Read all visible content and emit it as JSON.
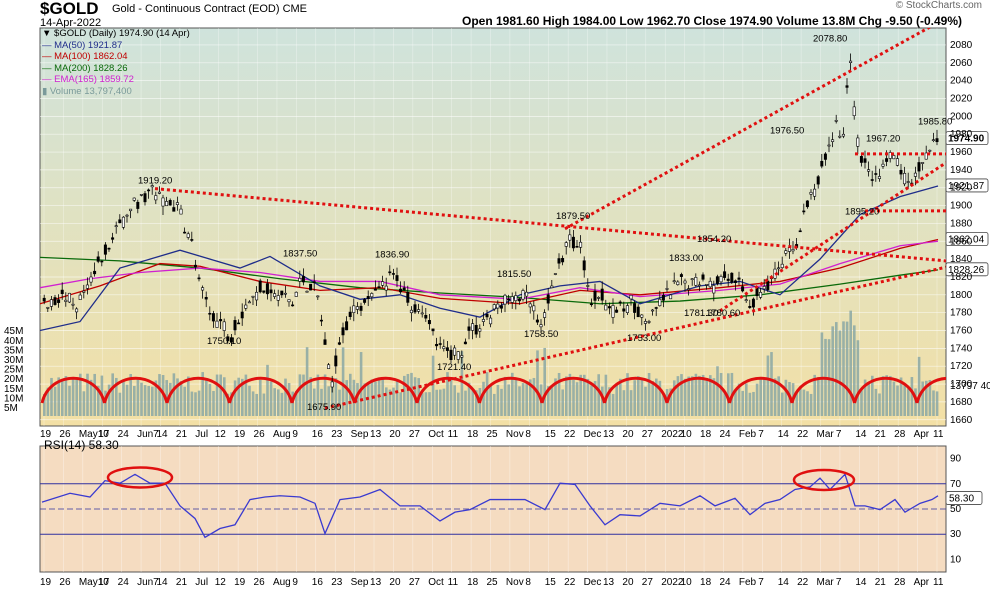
{
  "header": {
    "title": "$GOLD",
    "subtitle": "Gold - Continuous Contract (EOD) CME",
    "date": "14-Apr-2022",
    "ohlc": "Open 1981.60  High 1984.00  Low 1962.70  Close 1974.90  Volume 13.8M  Chg -9.50 (-0.49%)",
    "brand": "© StockCharts.com"
  },
  "legend": [
    {
      "text": "▼ $GOLD (Daily) 1974.90 (14 Apr)",
      "color": "#000000"
    },
    {
      "text": "— MA(50) 1921.87",
      "color": "#1f2d8a"
    },
    {
      "text": "— MA(100) 1862.04",
      "color": "#c00000"
    },
    {
      "text": "— MA(200) 1828.26",
      "color": "#0a6a0a"
    },
    {
      "text": "— EMA(165) 1859.72",
      "color": "#d020d0"
    },
    {
      "text": "▮ Volume 13,797,400",
      "color": "#7a9a9a"
    }
  ],
  "rsi_label": "RSI(14) 58.30",
  "colors": {
    "price_bg_top": "#cfe3dc",
    "price_bg_bottom": "#f2e1a8",
    "rsi_bg": "#f4dcc0",
    "trend": "#e01010",
    "ma50": "#1f2d8a",
    "ma100": "#c00000",
    "ma200": "#0a6a0a",
    "ema165": "#d020d0",
    "volume": "#8aa7a5",
    "rsi": "#3a3ad0"
  },
  "chart_data": {
    "type": "line",
    "price_axis": {
      "ylim": [
        1653,
        2099
      ],
      "ticks": [
        1660,
        1680,
        1700,
        1720,
        1740,
        1760,
        1780,
        1800,
        1820,
        1840,
        1860,
        1880,
        1900,
        1920,
        1940,
        1960,
        1980,
        2000,
        2020,
        2040,
        2060,
        2080
      ]
    },
    "volume_axis": {
      "labels": [
        "5M",
        "10M",
        "15M",
        "20M",
        "25M",
        "30M",
        "35M",
        "40M",
        "45M"
      ]
    },
    "x_tick_labels": [
      "19",
      "26",
      "May10",
      "17",
      "24",
      "Jun7",
      "14",
      "21",
      "Jul",
      "12",
      "19",
      "26",
      "Aug",
      "9",
      "16",
      "23",
      "Sep",
      "13",
      "20",
      "27",
      "Oct",
      "11",
      "18",
      "25",
      "Nov",
      "8",
      "15",
      "22",
      "Dec",
      "13",
      "20",
      "27",
      "2022",
      "10",
      "18",
      "24",
      "Feb",
      "7",
      "14",
      "22",
      "Mar",
      "7",
      "14",
      "21",
      "28",
      "Apr",
      "11"
    ],
    "current_price": "1974.90",
    "price_tags": [
      "1921.87",
      "1862.04",
      "1828.26"
    ],
    "volume_tag": "13797 40",
    "annotations": [
      "1919.20",
      "1837.50",
      "1836.90",
      "1750.10",
      "1815.50",
      "1879.50",
      "1758.50",
      "1721.40",
      "1675.90",
      "1833.00",
      "1854.20",
      "1781.30",
      "1780.60",
      "1753.00",
      "1976.50",
      "2078.80",
      "1967.20",
      "1985.80",
      "1895.20"
    ],
    "rsi": {
      "ylim": [
        0,
        100
      ],
      "ticks": [
        10,
        30,
        50,
        70,
        90
      ],
      "current": "58.30"
    }
  }
}
